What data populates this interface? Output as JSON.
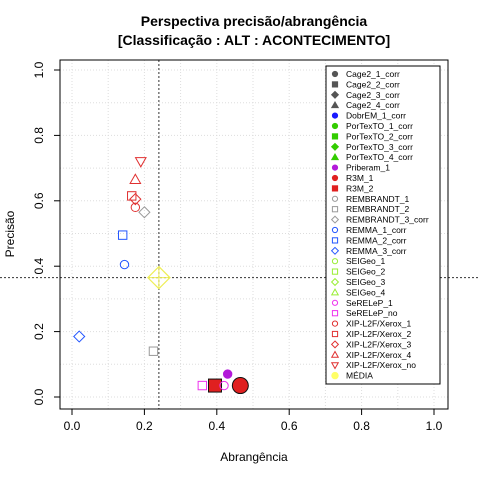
{
  "chart_data": {
    "type": "scatter",
    "title": "Perspectiva precisão/abrangência",
    "subtitle": "[Classificação : ALT : ACONTECIMENTO]",
    "xlabel": "Abrangência",
    "ylabel": "Precisão",
    "xlim": [
      0,
      1
    ],
    "ylim": [
      0,
      1
    ],
    "x_ticks": [
      "0.0",
      "0.2",
      "0.4",
      "0.6",
      "0.8",
      "1.0"
    ],
    "y_ticks": [
      "0.0",
      "0.2",
      "0.4",
      "0.6",
      "0.8",
      "1.0"
    ],
    "grid": true,
    "legend_position": "top-right",
    "reference_lines": {
      "x": 0.24,
      "y": 0.365
    },
    "series": [
      {
        "name": "Cage2_1_corr",
        "shape": "circle",
        "color": "#555555",
        "filled": true,
        "points": []
      },
      {
        "name": "Cage2_2_corr",
        "shape": "square",
        "color": "#555555",
        "filled": true,
        "points": []
      },
      {
        "name": "Cage2_3_corr",
        "shape": "diamond",
        "color": "#555555",
        "filled": true,
        "points": []
      },
      {
        "name": "Cage2_4_corr",
        "shape": "triangle",
        "color": "#555555",
        "filled": true,
        "points": []
      },
      {
        "name": "DobrEM_1_corr",
        "shape": "circle",
        "color": "#1a1aff",
        "filled": true,
        "points": []
      },
      {
        "name": "PorTexTO_1_corr",
        "shape": "circle",
        "color": "#33cc00",
        "filled": true,
        "points": []
      },
      {
        "name": "PorTexTO_2_corr",
        "shape": "square",
        "color": "#33cc00",
        "filled": true,
        "points": []
      },
      {
        "name": "PorTexTO_3_corr",
        "shape": "diamond",
        "color": "#33cc00",
        "filled": true,
        "points": []
      },
      {
        "name": "PorTexTO_4_corr",
        "shape": "triangle",
        "color": "#33cc00",
        "filled": true,
        "points": []
      },
      {
        "name": "Priberam_1",
        "shape": "circle",
        "color": "#b31ad9",
        "filled": true,
        "points": [
          {
            "x": 0.43,
            "y": 0.07
          }
        ]
      },
      {
        "name": "R3M_1",
        "shape": "circle",
        "color": "#e02020",
        "filled": true,
        "points": [
          {
            "x": 0.465,
            "y": 0.035
          }
        ]
      },
      {
        "name": "R3M_2",
        "shape": "square",
        "color": "#e02020",
        "filled": true,
        "points": [
          {
            "x": 0.395,
            "y": 0.035
          }
        ]
      },
      {
        "name": "REMBRANDT_1",
        "shape": "circle",
        "color": "#999999",
        "filled": false,
        "points": []
      },
      {
        "name": "REMBRANDT_2",
        "shape": "square",
        "color": "#999999",
        "filled": false,
        "points": [
          {
            "x": 0.225,
            "y": 0.14
          }
        ]
      },
      {
        "name": "REMBRANDT_3_corr",
        "shape": "diamond",
        "color": "#999999",
        "filled": false,
        "points": [
          {
            "x": 0.2,
            "y": 0.565
          }
        ]
      },
      {
        "name": "REMMA_1_corr",
        "shape": "circle",
        "color": "#2255ff",
        "filled": false,
        "points": [
          {
            "x": 0.145,
            "y": 0.405
          }
        ]
      },
      {
        "name": "REMMA_2_corr",
        "shape": "square",
        "color": "#2255ff",
        "filled": false,
        "points": [
          {
            "x": 0.14,
            "y": 0.495
          }
        ]
      },
      {
        "name": "REMMA_3_corr",
        "shape": "diamond",
        "color": "#2255ff",
        "filled": false,
        "points": [
          {
            "x": 0.02,
            "y": 0.185
          }
        ]
      },
      {
        "name": "SEIGeo_1",
        "shape": "circle",
        "color": "#99ee33",
        "filled": false,
        "points": []
      },
      {
        "name": "SEIGeo_2",
        "shape": "square",
        "color": "#99ee33",
        "filled": false,
        "points": []
      },
      {
        "name": "SEIGeo_3",
        "shape": "diamond",
        "color": "#99ee33",
        "filled": false,
        "points": []
      },
      {
        "name": "SEIGeo_4",
        "shape": "triangle",
        "color": "#99ee33",
        "filled": false,
        "points": []
      },
      {
        "name": "SeRELeP_1",
        "shape": "circle",
        "color": "#ee33ee",
        "filled": false,
        "points": [
          {
            "x": 0.42,
            "y": 0.035
          }
        ]
      },
      {
        "name": "SeRELeP_no",
        "shape": "square",
        "color": "#ee33ee",
        "filled": false,
        "points": [
          {
            "x": 0.36,
            "y": 0.035
          }
        ]
      },
      {
        "name": "XIP-L2F/Xerox_1",
        "shape": "circle",
        "color": "#e03030",
        "filled": false,
        "points": [
          {
            "x": 0.175,
            "y": 0.58
          }
        ]
      },
      {
        "name": "XIP-L2F/Xerox_2",
        "shape": "square",
        "color": "#e03030",
        "filled": false,
        "points": [
          {
            "x": 0.165,
            "y": 0.615
          }
        ]
      },
      {
        "name": "XIP-L2F/Xerox_3",
        "shape": "diamond",
        "color": "#e03030",
        "filled": false,
        "points": [
          {
            "x": 0.175,
            "y": 0.605
          }
        ]
      },
      {
        "name": "XIP-L2F/Xerox_4",
        "shape": "triangle",
        "color": "#e03030",
        "filled": false,
        "points": [
          {
            "x": 0.175,
            "y": 0.665
          }
        ]
      },
      {
        "name": "XIP-L2F/Xerox_no",
        "shape": "triangle-down",
        "color": "#e03030",
        "filled": false,
        "points": [
          {
            "x": 0.19,
            "y": 0.72
          }
        ]
      },
      {
        "name": "MÉDIA",
        "shape": "big-diamond",
        "color": "#ffff66",
        "filled": false,
        "points": [
          {
            "x": 0.24,
            "y": 0.365
          }
        ]
      }
    ]
  }
}
